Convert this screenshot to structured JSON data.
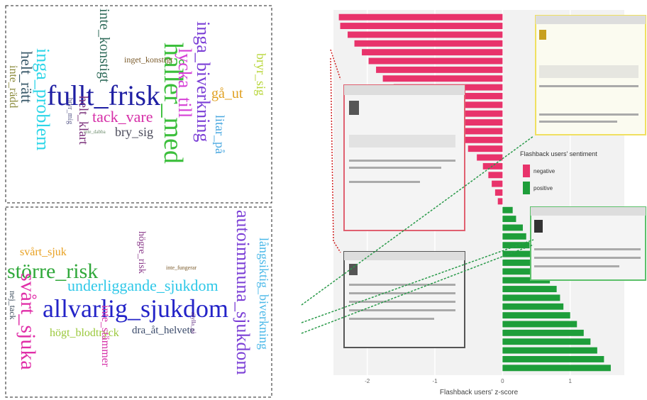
{
  "word_clouds": [
    {
      "words": [
        {
          "text": "fullt_frisk",
          "color": "#1f1fa3"
        },
        {
          "text": "håller_med",
          "color": "#3cbf3c"
        },
        {
          "text": "inga_biverkning",
          "color": "#7b3fd6"
        },
        {
          "text": "lycka_till",
          "color": "#d63fd6"
        },
        {
          "text": "inte_konstigt",
          "color": "#2f6b5a"
        },
        {
          "text": "inga_problem",
          "color": "#2fd6e8"
        },
        {
          "text": "helt_rätt",
          "color": "#3a5a6a"
        },
        {
          "text": "inte_rädd",
          "color": "#8a8a3a"
        },
        {
          "text": "inget_konstigt",
          "color": "#7a5a2a"
        },
        {
          "text": "tack_vare",
          "color": "#d62fa8"
        },
        {
          "text": "bry_sig",
          "color": "#4a4a5a"
        },
        {
          "text": "helt_klart",
          "color": "#7a2f7a"
        },
        {
          "text": "bryr_mig",
          "color": "#5a5a8a"
        },
        {
          "text": "inte_dabba",
          "color": "#6a8a6a"
        },
        {
          "text": "gå_ut",
          "color": "#e0a020"
        },
        {
          "text": "litar_på",
          "color": "#4aa8e0"
        },
        {
          "text": "bryr_sig",
          "color": "#b8d63a"
        }
      ]
    },
    {
      "words": [
        {
          "text": "allvarlig_sjukdom",
          "color": "#2424c8"
        },
        {
          "text": "större_risk",
          "color": "#2fa83a"
        },
        {
          "text": "svårt_sjuk",
          "color": "#e8a020"
        },
        {
          "text": "svårt_sjuka",
          "color": "#e02fa8"
        },
        {
          "text": "underliggande_sjukdom",
          "color": "#2fc8e8"
        },
        {
          "text": "autoimmuna_sjukdom",
          "color": "#7b3fd6"
        },
        {
          "text": "långsiktig_biverkning",
          "color": "#4ab8e8"
        },
        {
          "text": "högt_blodtryck",
          "color": "#9ac83a"
        },
        {
          "text": "inte_stämmer",
          "color": "#d62fa8"
        },
        {
          "text": "högre_risk",
          "color": "#8a3a8a"
        },
        {
          "text": "dra_åt_helvete",
          "color": "#3a4a6a"
        },
        {
          "text": "nej_tack",
          "color": "#3a4a5a"
        },
        {
          "text": "inte_fungerar",
          "color": "#7a5a2a"
        },
        {
          "text": "skylla_på",
          "color": "#6a3a8a"
        }
      ]
    }
  ],
  "chart_data": {
    "type": "bar",
    "orientation": "horizontal",
    "categories": [
      null,
      null,
      null,
      null,
      null,
      null,
      null,
      null,
      null,
      null,
      null,
      null,
      null,
      null,
      null,
      null,
      null,
      null,
      null,
      null,
      null,
      null,
      null,
      null,
      null,
      null,
      null,
      null,
      null,
      null,
      null,
      null,
      null,
      null,
      null,
      null,
      null,
      null,
      null,
      null,
      null
    ],
    "series": [
      {
        "name": "negative",
        "color": "#e8336b",
        "values": [
          -2.42,
          -2.4,
          -2.29,
          -2.19,
          -2.08,
          -1.98,
          -1.87,
          -1.77,
          -1.61,
          -1.4,
          -1.14,
          -1.03,
          -0.93,
          -0.72,
          -0.61,
          -0.51,
          -0.38,
          -0.29,
          -0.21,
          -0.16,
          -0.11,
          -0.07,
          null,
          null,
          null,
          null,
          null,
          null,
          null,
          null,
          null,
          null,
          null,
          null,
          null,
          null,
          null,
          null,
          null,
          null,
          null
        ]
      },
      {
        "name": "positive",
        "color": "#1e9e3a",
        "values": [
          null,
          null,
          null,
          null,
          null,
          null,
          null,
          null,
          null,
          null,
          null,
          null,
          null,
          null,
          null,
          null,
          null,
          null,
          null,
          null,
          null,
          null,
          0.15,
          0.2,
          0.3,
          0.35,
          0.4,
          0.5,
          0.55,
          0.6,
          0.7,
          0.8,
          0.85,
          0.9,
          1.0,
          1.1,
          1.2,
          1.3,
          1.4,
          1.5,
          1.6
        ]
      }
    ],
    "xlim": [
      -2.5,
      1.8
    ],
    "xticks": [
      -2,
      -1,
      0,
      1
    ],
    "xlabel": "Flashback users' z-score",
    "legend_title": "Flashback users' sentiment",
    "grid": true
  }
}
